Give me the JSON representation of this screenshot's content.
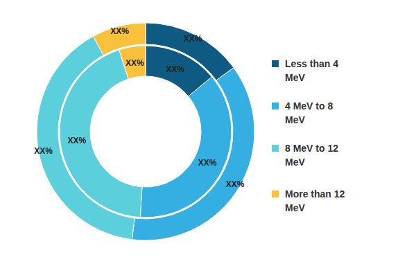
{
  "chart_data": {
    "type": "pie",
    "categories": [
      "Less than 4 MeV",
      "4 MeV to 8 MeV",
      "8 MeV to 12 MeV",
      "More than 12 MeV"
    ],
    "colors": [
      "#0e5a82",
      "#35aee2",
      "#5ccfdc",
      "#fbc13a"
    ],
    "series": [
      {
        "values": [
          14,
          37,
          44,
          5
        ],
        "value_labels": [
          "XX%",
          "XX%",
          "XX%",
          "XX%"
        ]
      },
      {
        "values": [
          15,
          37,
          40,
          8
        ],
        "value_labels": [
          "XX%",
          "XX%",
          "XX%",
          "XX%"
        ]
      }
    ],
    "data_labels": true,
    "legend": "right"
  }
}
